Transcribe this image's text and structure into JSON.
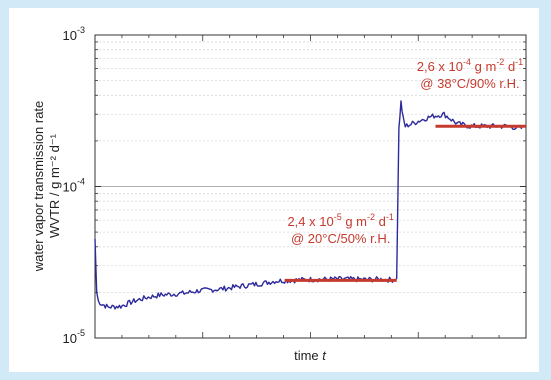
{
  "chart_data": {
    "type": "line",
    "title": "",
    "xlabel": "time",
    "xlabel_var": "t",
    "ylabel_line1": "water vapor transmission rate",
    "ylabel_line2": "WVTR / g m⁻² d⁻¹",
    "y_scale": "log",
    "ylim": [
      1e-05,
      0.001
    ],
    "xlim": [
      0,
      100
    ],
    "y_ticks": [
      {
        "value": 1e-05,
        "base": "10",
        "exp": "-5"
      },
      {
        "value": 0.0001,
        "base": "10",
        "exp": "-4"
      },
      {
        "value": 0.001,
        "base": "10",
        "exp": "-3"
      }
    ],
    "x_tick_labels_shown": false,
    "grid": "horizontal dotted minor lines, solid lines at decades",
    "series": [
      {
        "color": "#2d2a9c",
        "x": [
          0,
          0.4,
          0.8,
          1.5,
          3,
          6,
          9,
          12,
          15,
          18,
          21,
          24,
          27,
          30,
          33,
          36,
          39,
          42,
          45,
          48,
          51,
          54,
          57,
          60,
          63,
          66,
          69,
          70,
          70.5,
          71,
          71.5,
          72,
          75,
          78,
          81,
          84,
          87,
          90,
          93,
          96,
          99
        ],
        "y": [
          4.5e-05,
          2e-05,
          1.75e-05,
          1.68e-05,
          1.6e-05,
          1.62e-05,
          1.75e-05,
          1.85e-05,
          1.92e-05,
          1.95e-05,
          1.98e-05,
          2.05e-05,
          2.08e-05,
          2.12e-05,
          2.18e-05,
          2.24e-05,
          2.3e-05,
          2.38e-05,
          2.4e-05,
          2.42e-05,
          2.44e-05,
          2.44e-05,
          2.45e-05,
          2.44e-05,
          2.43e-05,
          2.44e-05,
          2.42e-05,
          2.48e-05,
          0.00024,
          0.00036,
          0.00028,
          0.00025,
          0.00027,
          0.00029,
          0.0003,
          0.00026,
          0.00025,
          0.00025,
          0.00025,
          0.00025,
          0.00024
        ]
      }
    ],
    "fit_lines": [
      {
        "color": "#c63a2e",
        "x": [
          44,
          70
        ],
        "y": 2.4e-05
      },
      {
        "color": "#c63a2e",
        "x": [
          79,
          100
        ],
        "y": 0.00025
      }
    ],
    "annotations": [
      {
        "line1_parts": [
          "2,4 x 10",
          "-5",
          " g m",
          "-2",
          "d",
          "-1"
        ],
        "line2": "@ 20°C/50% r.H.",
        "x": 57,
        "y": 5.5e-05
      },
      {
        "line1_parts": [
          "2,6 x 10",
          "-4",
          " g m",
          "-2",
          "d",
          "-1"
        ],
        "line2": "@ 38°C/90% r.H.",
        "x": 87,
        "y": 0.00058
      }
    ]
  }
}
